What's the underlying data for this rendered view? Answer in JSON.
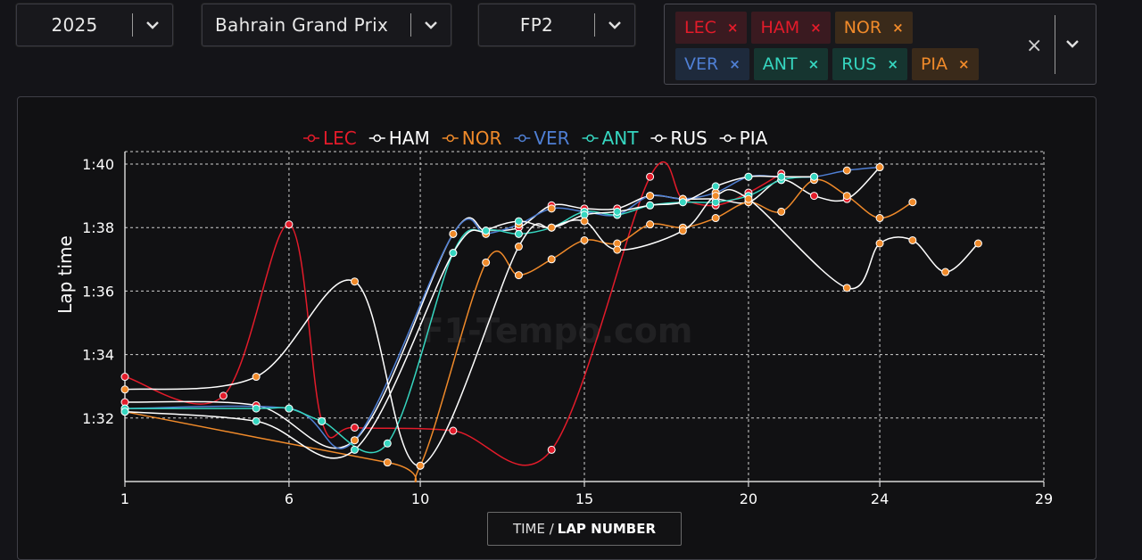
{
  "filters": {
    "year": "2025",
    "event": "Bahrain Grand Prix",
    "session": "FP2"
  },
  "drivers": [
    {
      "code": "LEC",
      "text_color": "#e31b2a",
      "bg": "#3a1a20",
      "x_color": "#e31b2a"
    },
    {
      "code": "HAM",
      "text_color": "#e31b2a",
      "bg": "#3a1a20",
      "x_color": "#e31b2a"
    },
    {
      "code": "NOR",
      "text_color": "#f08a2a",
      "bg": "#3a2a1a",
      "x_color": "#f08a2a"
    },
    {
      "code": "VER",
      "text_color": "#4f7fd4",
      "bg": "#1e2a3c",
      "x_color": "#4f7fd4"
    },
    {
      "code": "ANT",
      "text_color": "#36d6c0",
      "bg": "#163530",
      "x_color": "#36d6c0"
    },
    {
      "code": "RUS",
      "text_color": "#36d6c0",
      "bg": "#163530",
      "x_color": "#36d6c0"
    },
    {
      "code": "PIA",
      "text_color": "#f08a2a",
      "bg": "#3a2a1a",
      "x_color": "#f08a2a"
    }
  ],
  "icons": {
    "clear": "×",
    "remove": "×"
  },
  "watermark": "F1-Tempo.com",
  "x_axis_button": {
    "prefix": "TIME /",
    "label": "LAP NUMBER"
  },
  "chart_data": {
    "type": "line",
    "ylabel": "Lap time",
    "xlim": [
      1,
      29
    ],
    "ylim": [
      "1:30",
      "1:40"
    ],
    "x_ticks": [
      1,
      6,
      10,
      15,
      20,
      24,
      29
    ],
    "y_ticks": [
      "1:32",
      "1:34",
      "1:36",
      "1:38",
      "1:40"
    ],
    "grid": true,
    "legend": "top",
    "series": [
      {
        "name": "LEC",
        "color": "#e31b2a",
        "marker": "#e31b2a",
        "x": [
          1,
          4,
          6,
          7,
          8,
          11,
          14,
          17,
          18,
          19,
          20,
          21
        ],
        "y": [
          "1:33.3",
          "1:32.7",
          "1:38.1",
          "1:31.9",
          "1:31.7",
          "1:31.6",
          "1:31.0",
          "1:39.6",
          "1:38.9",
          "1:38.7",
          "1:39.1",
          "1:39.7"
        ]
      },
      {
        "name": "HAM",
        "color": "#ffffff",
        "marker": "#e31b2a",
        "x": [
          1,
          5,
          8,
          11,
          12,
          13,
          14,
          15,
          16,
          17,
          18,
          19,
          20,
          21,
          22,
          23,
          24
        ],
        "y": [
          "1:32.5",
          "1:32.4",
          "1:31.3",
          "1:37.8",
          "1:37.9",
          "1:38.0",
          "1:38.7",
          "1:38.6",
          "1:38.6",
          "1:39.0",
          "1:38.9",
          "1:38.9",
          "1:38.8",
          "1:39.5",
          "1:39.0",
          "1:38.9",
          "1:39.9"
        ]
      },
      {
        "name": "NOR",
        "color": "#f08a2a",
        "marker": "#f08a2a",
        "x": [
          1,
          9,
          10,
          12,
          13,
          14,
          15,
          16,
          17,
          18,
          19,
          20,
          21,
          22,
          23,
          24,
          25
        ],
        "y": [
          "1:32.2",
          "1:30.6",
          "1:30.5",
          "1:36.9",
          "1:36.5",
          "1:37.0",
          "1:37.6",
          "1:37.5",
          "1:38.1",
          "1:38.0",
          "1:38.3",
          "1:38.8",
          "1:38.5",
          "1:39.5",
          "1:39.0",
          "1:38.3",
          "1:38.8"
        ]
      },
      {
        "name": "VER",
        "color": "#4f7fd4",
        "marker": "#f08a2a",
        "x": [
          1,
          6,
          8,
          11,
          12,
          13,
          14,
          15,
          16,
          17,
          18,
          19,
          20,
          21,
          22,
          23,
          24
        ],
        "y": [
          "1:32.3",
          "1:32.3",
          "1:31.3",
          "1:37.8",
          "1:37.8",
          "1:38.1",
          "1:38.6",
          "1:38.5",
          "1:38.4",
          "1:39.0",
          "1:38.9",
          "1:39.1",
          "1:39.6",
          "1:39.6",
          "1:39.6",
          "1:39.8",
          "1:39.9"
        ]
      },
      {
        "name": "ANT",
        "color": "#36d6c0",
        "marker": "#36d6c0",
        "x": [
          1,
          5,
          6,
          7,
          9,
          11,
          12,
          13,
          14,
          15,
          16,
          17,
          18,
          19,
          20,
          21,
          22
        ],
        "y": [
          "1:32.3",
          "1:32.3",
          "1:32.3",
          "1:31.9",
          "1:31.2",
          "1:37.2",
          "1:37.9",
          "1:37.8",
          "1:38.0",
          "1:38.5",
          "1:38.4",
          "1:38.7",
          "1:38.8",
          "1:38.8",
          "1:39.0",
          "1:39.5",
          "1:39.6"
        ]
      },
      {
        "name": "RUS",
        "color": "#ffffff",
        "marker": "#36d6c0",
        "x": [
          1,
          5,
          8,
          11,
          12,
          13,
          14,
          15,
          16,
          17,
          18,
          19,
          20,
          21,
          22
        ],
        "y": [
          "1:32.2",
          "1:31.9",
          "1:31.0",
          "1:37.2",
          "1:37.9",
          "1:38.2",
          "1:38.0",
          "1:38.4",
          "1:38.5",
          "1:38.7",
          "1:38.8",
          "1:39.3",
          "1:39.6",
          "1:39.6",
          "1:39.6"
        ]
      },
      {
        "name": "PIA",
        "color": "#ffffff",
        "marker": "#f08a2a",
        "x": [
          1,
          5,
          8,
          10,
          13,
          14,
          15,
          16,
          18,
          19,
          20,
          23,
          24,
          25,
          26,
          27
        ],
        "y": [
          "1:32.9",
          "1:33.3",
          "1:36.3",
          "1:30.5",
          "1:37.4",
          "1:38.0",
          "1:38.2",
          "1:37.3",
          "1:37.9",
          "1:39.0",
          "1:38.9",
          "1:36.1",
          "1:37.5",
          "1:37.6",
          "1:36.6",
          "1:37.5"
        ]
      }
    ]
  }
}
